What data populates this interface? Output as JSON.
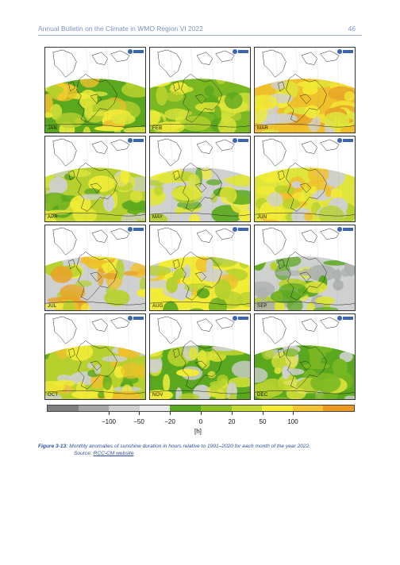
{
  "header": {
    "title": "Annual Bulletin on the Climate in WMO Region VI 2022",
    "page_number": "46"
  },
  "figure": {
    "panels": [
      {
        "month": "JAN",
        "theme": [
          "#5aa81d",
          "#b6d12d",
          "#dfe53a",
          "#f2ec36",
          "#f0c02a"
        ]
      },
      {
        "month": "FEB",
        "theme": [
          "#7ab822",
          "#b6d12d",
          "#dfe53a",
          "#f2ec36",
          "#5aa81d"
        ]
      },
      {
        "month": "MAR",
        "theme": [
          "#f0c02a",
          "#e8a528",
          "#f2ec36",
          "#cfd0d0",
          "#dfe53a"
        ]
      },
      {
        "month": "APR",
        "theme": [
          "#b6d12d",
          "#dfe53a",
          "#5aa81d",
          "#cfd0d0",
          "#f2ec36"
        ]
      },
      {
        "month": "MAY",
        "theme": [
          "#cfd0d0",
          "#dfe53a",
          "#b6d12d",
          "#f2ec36",
          "#5aa81d"
        ]
      },
      {
        "month": "JUN",
        "theme": [
          "#dfe53a",
          "#f2ec36",
          "#f0c02a",
          "#b6d12d",
          "#cfd0d0"
        ]
      },
      {
        "month": "JUL",
        "theme": [
          "#cfd0d0",
          "#f2ec36",
          "#f0c02a",
          "#b6d12d",
          "#e8a528"
        ]
      },
      {
        "month": "AUG",
        "theme": [
          "#f2ec36",
          "#f0c02a",
          "#b6d12d",
          "#cfd0d0",
          "#5aa81d"
        ]
      },
      {
        "month": "SEP",
        "theme": [
          "#cfd0d0",
          "#b6d12d",
          "#5aa81d",
          "#dfe53a",
          "#aeb0b0"
        ]
      },
      {
        "month": "OCT",
        "theme": [
          "#b6d12d",
          "#f2ec36",
          "#f0c02a",
          "#5aa81d",
          "#cfd0d0"
        ]
      },
      {
        "month": "NOV",
        "theme": [
          "#5aa81d",
          "#b6d12d",
          "#dfe53a",
          "#cfd0d0",
          "#f2ec36"
        ]
      },
      {
        "month": "DEC",
        "theme": [
          "#5aa81d",
          "#7ab822",
          "#b6d12d",
          "#dfe53a",
          "#cfd0d0"
        ]
      }
    ],
    "colorbar": {
      "colors": [
        "#808080",
        "#a6a6a6",
        "#cfcfcf",
        "#e8e8e8",
        "#5aa81d",
        "#8cc225",
        "#c3da30",
        "#f2ec36",
        "#f3c532",
        "#ed9a22"
      ],
      "tick_labels": [
        "−100",
        "−50",
        "−20",
        "0",
        "20",
        "50",
        "100"
      ],
      "unit": "[h]"
    },
    "caption": {
      "label": "Figure 3-13:",
      "text": "Monthly anomalies of sunshine duration in hours relative to 1991–2020 for each month of the year 2022.",
      "source_prefix": "Source: ",
      "source_link": "RCC-CM website"
    }
  }
}
